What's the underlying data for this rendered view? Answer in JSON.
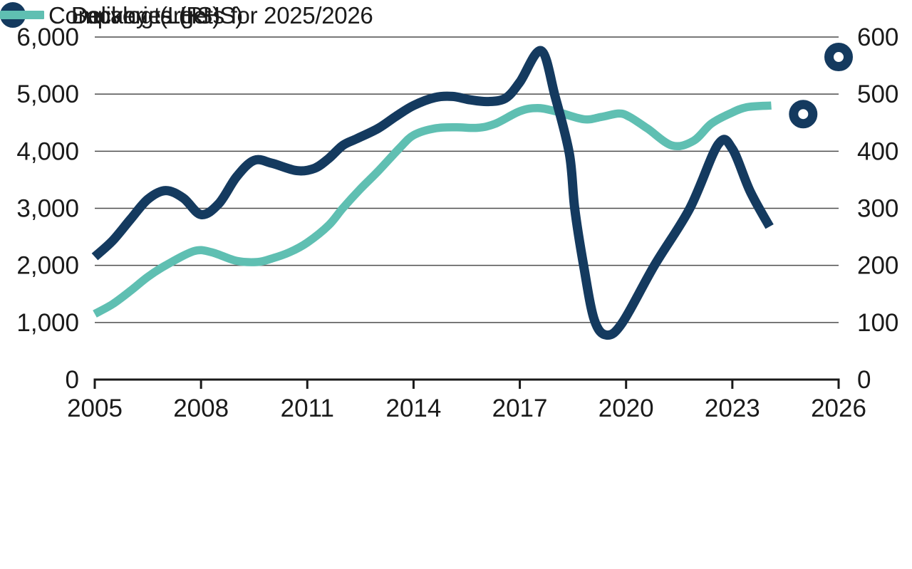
{
  "chart_data": {
    "type": "line",
    "title": "",
    "grid": true,
    "x_axis": {
      "min": 2005,
      "max": 2026,
      "tick_years": [
        2005,
        2008,
        2011,
        2014,
        2017,
        2020,
        2023,
        2026
      ],
      "tick_labels": [
        "2005",
        "2008",
        "2011",
        "2014",
        "2017",
        "2020",
        "2023",
        "2026"
      ]
    },
    "left_axis": {
      "min": 0,
      "max": 6000,
      "ticks": [
        0,
        1000,
        2000,
        3000,
        4000,
        5000,
        6000
      ],
      "tick_labels": [
        "0",
        "1,000",
        "2,000",
        "3,000",
        "4,000",
        "5,000",
        "6,000"
      ]
    },
    "right_axis": {
      "min": 0,
      "max": 600,
      "ticks": [
        0,
        100,
        200,
        300,
        400,
        500,
        600
      ],
      "tick_labels": [
        "0",
        "100",
        "200",
        "300",
        "400",
        "500",
        "600"
      ]
    },
    "colors": {
      "navy": "#143a5f",
      "teal": "#5fbfb2",
      "gridline": "#4d4d4d",
      "axis": "#1a1a1a",
      "text": "#1a1a1a"
    },
    "series": [
      {
        "id": "deliveries",
        "name": "Deliveries (RHS)",
        "axis": "right",
        "style": "line",
        "color": "#143a5f",
        "points": [
          [
            2005,
            215
          ],
          [
            2005.5,
            243
          ],
          [
            2006,
            280
          ],
          [
            2006.5,
            316
          ],
          [
            2007,
            331
          ],
          [
            2007.5,
            318
          ],
          [
            2008,
            289
          ],
          [
            2008.5,
            308
          ],
          [
            2009,
            355
          ],
          [
            2009.5,
            384
          ],
          [
            2010,
            379
          ],
          [
            2010.7,
            366
          ],
          [
            2011.2,
            370
          ],
          [
            2011.6,
            387
          ],
          [
            2012,
            410
          ],
          [
            2012.4,
            422
          ],
          [
            2013,
            440
          ],
          [
            2013.5,
            461
          ],
          [
            2014,
            480
          ],
          [
            2014.6,
            494
          ],
          [
            2015.1,
            496
          ],
          [
            2015.6,
            490
          ],
          [
            2016.1,
            487
          ],
          [
            2016.6,
            493
          ],
          [
            2017,
            521
          ],
          [
            2017.6,
            576
          ],
          [
            2018,
            495
          ],
          [
            2018.4,
            395
          ],
          [
            2018.55,
            300
          ],
          [
            2018.8,
            200
          ],
          [
            2019.1,
            105
          ],
          [
            2019.45,
            78
          ],
          [
            2019.9,
            100
          ],
          [
            2020.8,
            200
          ],
          [
            2021.8,
            300
          ],
          [
            2022.6,
            412
          ],
          [
            2023,
            404
          ],
          [
            2023.5,
            330
          ],
          [
            2024.05,
            268
          ]
        ]
      },
      {
        "id": "backlog",
        "name": "Backlog (LHS)",
        "axis": "left",
        "style": "line",
        "color": "#5fbfb2",
        "points": [
          [
            2005,
            1150
          ],
          [
            2005.5,
            1320
          ],
          [
            2006,
            1550
          ],
          [
            2006.5,
            1800
          ],
          [
            2007,
            2000
          ],
          [
            2007.8,
            2250
          ],
          [
            2008.3,
            2230
          ],
          [
            2009,
            2080
          ],
          [
            2009.6,
            2060
          ],
          [
            2010,
            2120
          ],
          [
            2010.5,
            2230
          ],
          [
            2011,
            2400
          ],
          [
            2011.6,
            2700
          ],
          [
            2012,
            3000
          ],
          [
            2012.5,
            3340
          ],
          [
            2013,
            3650
          ],
          [
            2013.6,
            4050
          ],
          [
            2014,
            4280
          ],
          [
            2014.6,
            4400
          ],
          [
            2015.2,
            4420
          ],
          [
            2015.8,
            4410
          ],
          [
            2016.3,
            4480
          ],
          [
            2017,
            4700
          ],
          [
            2017.5,
            4755
          ],
          [
            2018,
            4700
          ],
          [
            2018.8,
            4560
          ],
          [
            2019.3,
            4600
          ],
          [
            2019.8,
            4660
          ],
          [
            2020.1,
            4600
          ],
          [
            2020.6,
            4400
          ],
          [
            2021.3,
            4100
          ],
          [
            2021.9,
            4180
          ],
          [
            2022.4,
            4480
          ],
          [
            2022.9,
            4650
          ],
          [
            2023.4,
            4770
          ],
          [
            2024.1,
            4800
          ]
        ]
      },
      {
        "id": "targets",
        "name": "Company targets for 2025/2026",
        "axis": "right",
        "style": "ring-marker",
        "color": "#143a5f",
        "points": [
          [
            2025,
            465
          ],
          [
            2026,
            565
          ]
        ]
      }
    ]
  },
  "legend": {
    "items": [
      {
        "label": "Deliveries (RHS)",
        "marker": "line",
        "series_id": "deliveries"
      },
      {
        "label": "Backlog (LHS)",
        "marker": "line",
        "series_id": "backlog"
      },
      {
        "label": "Company targets for 2025/2026",
        "marker": "ring",
        "series_id": "targets"
      }
    ]
  }
}
